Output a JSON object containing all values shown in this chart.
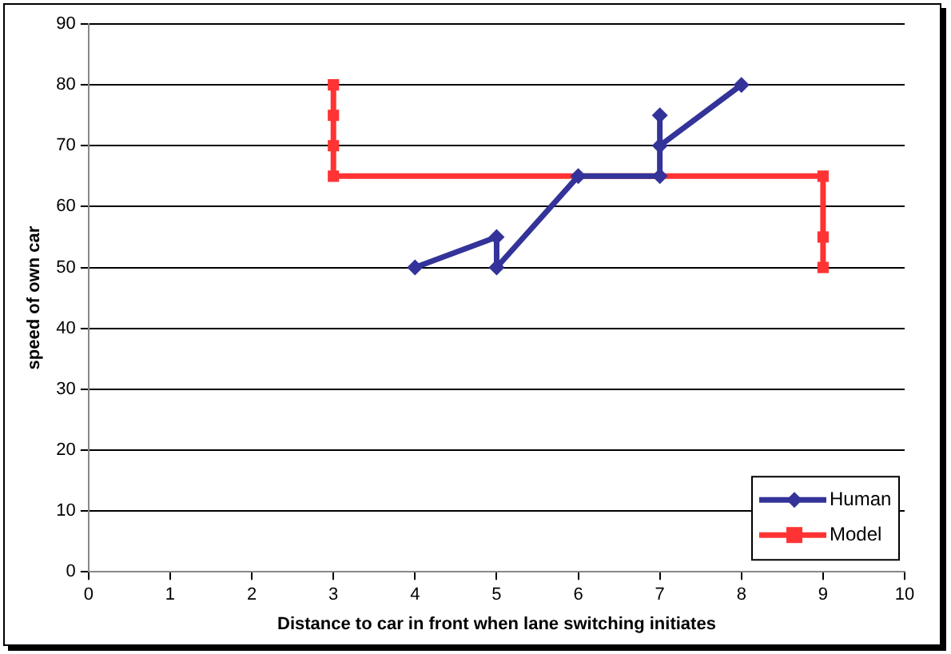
{
  "chart_data": {
    "type": "line",
    "xlabel": "Distance to car in front when lane switching initiates",
    "ylabel": "speed of own car",
    "xlim": [
      0,
      10
    ],
    "xticks": [
      0,
      1,
      2,
      3,
      4,
      5,
      6,
      7,
      8,
      9,
      10
    ],
    "ylim": [
      0,
      90
    ],
    "yticks": [
      0,
      10,
      20,
      30,
      40,
      50,
      60,
      70,
      80,
      90
    ],
    "grid": "y",
    "legend": "bottom right",
    "series": [
      {
        "name": "Human",
        "color": "#333399",
        "marker": "diamond",
        "x": [
          4,
          5,
          5,
          6,
          7,
          7,
          7,
          8
        ],
        "values": [
          50,
          55,
          50,
          65,
          65,
          75,
          70,
          80
        ]
      },
      {
        "name": "Model",
        "color": "#ff3333",
        "marker": "square",
        "x": [
          3,
          3,
          3,
          3,
          9,
          9,
          9
        ],
        "values": [
          80,
          75,
          70,
          65,
          65,
          55,
          50
        ]
      }
    ]
  }
}
